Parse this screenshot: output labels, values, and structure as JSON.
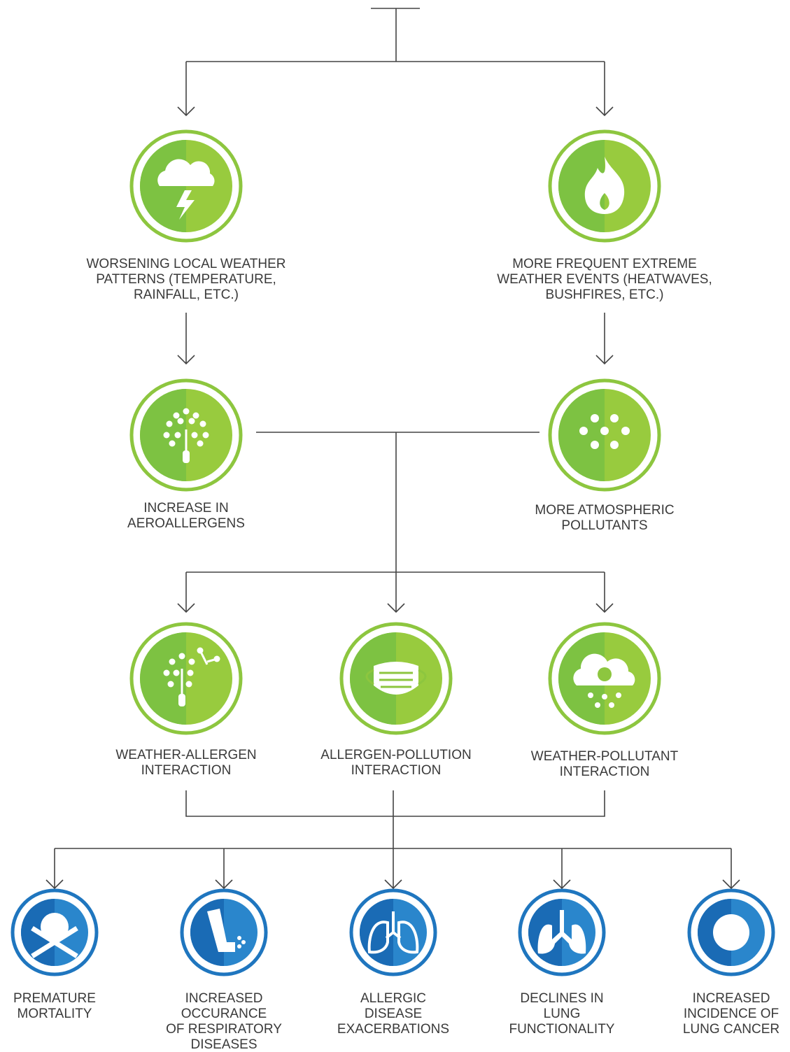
{
  "nodes": [
    {
      "label": [
        "WORSENING LOCAL WEATHER",
        "PATTERNS (TEMPERATURE,",
        "RAINFALL, ETC.)"
      ]
    },
    {
      "label": [
        "MORE FREQUENT EXTREME",
        "WEATHER EVENTS (HEATWAVES,",
        "BUSHFIRES, ETC.)"
      ]
    },
    {
      "label": [
        "INCREASE IN",
        "AEROALLERGENS"
      ]
    },
    {
      "label": [
        "MORE ATMOSPHERIC",
        "POLLUTANTS"
      ]
    },
    {
      "label": [
        "WEATHER-ALLERGEN",
        "INTERACTION"
      ]
    },
    {
      "label": [
        "ALLERGEN-POLLUTION",
        "INTERACTION"
      ]
    },
    {
      "label": [
        "WEATHER-POLLUTANT",
        "INTERACTION"
      ]
    },
    {
      "label": [
        "PREMATURE",
        "MORTALITY"
      ]
    },
    {
      "label": [
        "INCREASED",
        "OCCURANCE",
        "OF RESPIRATORY",
        "DISEASES"
      ]
    },
    {
      "label": [
        "ALLERGIC",
        "DISEASE",
        "EXACERBATIONS"
      ]
    },
    {
      "label": [
        "DECLINES IN",
        "LUNG",
        "FUNCTIONALITY"
      ]
    },
    {
      "label": [
        "INCREASED",
        "INCIDENCE OF",
        "LUNG CANCER"
      ]
    }
  ]
}
